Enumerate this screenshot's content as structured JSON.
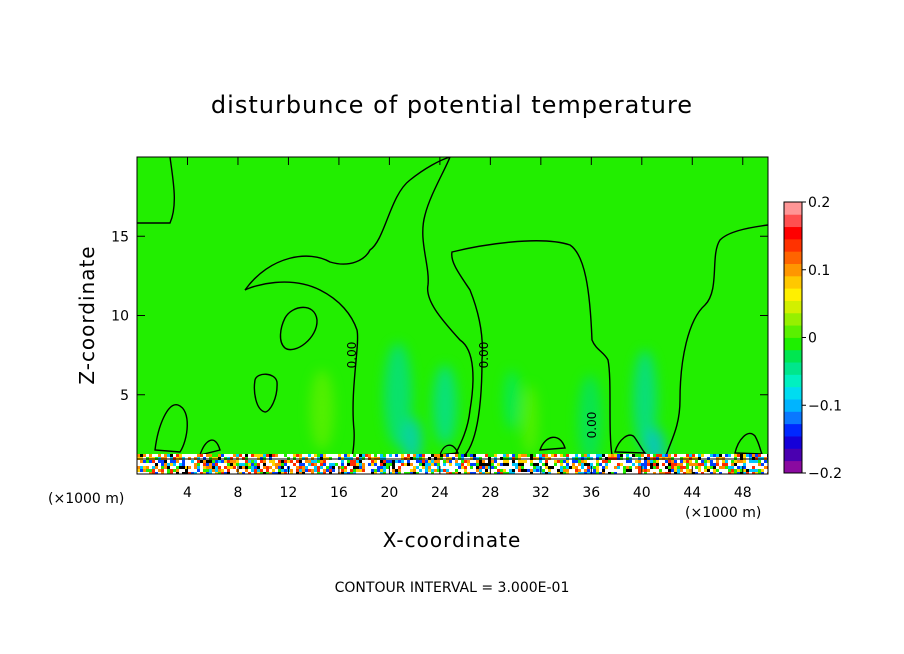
{
  "chart_data": {
    "type": "heatmap",
    "title": "disturbunce of potential temperature",
    "xlabel": "X-coordinate",
    "ylabel": "Z-coordinate",
    "x_unit_left": "(×1000 m)",
    "x_unit_right": "(×1000 m)",
    "xlim": [
      0,
      50
    ],
    "ylim": [
      0,
      20
    ],
    "x_ticks": [
      4,
      8,
      12,
      16,
      20,
      24,
      28,
      32,
      36,
      40,
      44,
      48
    ],
    "y_ticks": [
      5,
      10,
      15
    ],
    "colorbar": {
      "min": -0.2,
      "max": 0.2,
      "tick_values": [
        0.2,
        0.1,
        0,
        -0.1,
        -0.2
      ],
      "tick_labels": [
        "0.2",
        "0.1",
        "0",
        "-0.1",
        "-0.2"
      ],
      "colors": [
        "#8a0aa0",
        "#4a00b0",
        "#1500d8",
        "#0028ff",
        "#0a78ff",
        "#00b4ff",
        "#00dcf0",
        "#00f0c0",
        "#00e68c",
        "#00e650",
        "#1ef000",
        "#5af000",
        "#96f000",
        "#d2f000",
        "#fff000",
        "#ffc800",
        "#ff9600",
        "#ff6400",
        "#ff3200",
        "#ff0000",
        "#ff5050",
        "#ff9696"
      ]
    },
    "contour_label": "0.00",
    "contour_label_count": 4,
    "annotation": "CONTOUR INTERVAL = 3.000E-01",
    "background_color": "#22ee00",
    "grid": false
  }
}
